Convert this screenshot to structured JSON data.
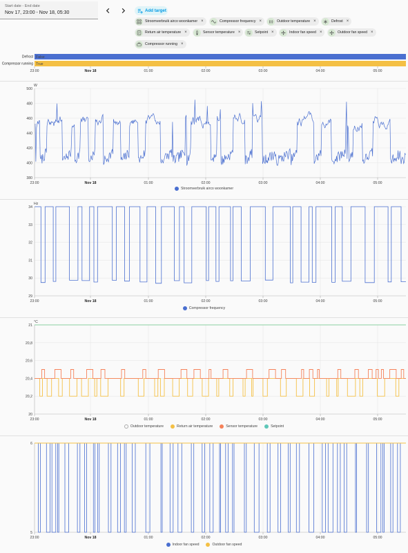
{
  "date_range": {
    "label": "Start date - End date",
    "value": "Nov 17, 23:00 - Nov 18, 05:30"
  },
  "nav": {
    "prev_icon": "chevron-left-icon",
    "next_icon": "chevron-right-icon"
  },
  "add_target": {
    "label": "Add target",
    "icon": "add-target-icon"
  },
  "targets": [
    {
      "label": "Stroomverbruik airco woonkamer",
      "icon": "energy-icon"
    },
    {
      "label": "Compressor frequency",
      "icon": "sine-wave-icon"
    },
    {
      "label": "Outdoor temperature",
      "icon": "heat-icon"
    },
    {
      "label": "Defrost",
      "icon": "snowflake-sun-icon"
    },
    {
      "label": "Return air temperature",
      "icon": "thermostat-icon"
    },
    {
      "label": "Sensor temperature",
      "icon": "thermometer-icon"
    },
    {
      "label": "Setpoint",
      "icon": "sliders-icon"
    },
    {
      "label": "Indoor fan speed",
      "icon": "fan-icon"
    },
    {
      "label": "Outdoor fan speed",
      "icon": "fan-icon"
    },
    {
      "label": "Compressor running",
      "icon": "compressor-icon"
    }
  ],
  "colors": {
    "blue": "#4a6fd0",
    "orange": "#f4c044",
    "red": "#f58159",
    "teal": "#5ec7b8",
    "green": "#8ad0a0",
    "grid": "#e6e6e6"
  },
  "x_ticks": [
    "23:00",
    "Nov 18",
    "01:00",
    "02:00",
    "03:00",
    "04:00",
    "05:00"
  ],
  "chart_data": [
    {
      "type": "timeline",
      "rows": [
        {
          "name": "Defrost",
          "state": "False"
        },
        {
          "name": "Compressor running",
          "state": "True"
        }
      ]
    },
    {
      "type": "line",
      "unit": "W",
      "ylim": [
        380,
        500
      ],
      "yticks": [
        "500",
        "480",
        "460",
        "440",
        "420",
        "400",
        "380"
      ],
      "series": [
        {
          "name": "Stroomverbruik airco woonkamer",
          "baseline": 455,
          "dips_to": 395,
          "spikes_to": 475
        }
      ]
    },
    {
      "type": "line",
      "unit": "Hz",
      "ylim": [
        29,
        34
      ],
      "yticks": [
        "34",
        "33",
        "32",
        "31",
        "30",
        "29"
      ],
      "series": [
        {
          "name": "Compressor frequency",
          "high": 34,
          "low": 29.7
        }
      ]
    },
    {
      "type": "line",
      "unit": "°C",
      "ylim": [
        20,
        21
      ],
      "yticks": [
        "21",
        "20,8",
        "20,6",
        "20,4",
        "20,2",
        "20"
      ],
      "series": [
        {
          "name": "Outdoor temperature",
          "value": null
        },
        {
          "name": "Return air temperature",
          "high": 20.4,
          "low": 20.2
        },
        {
          "name": "Sensor temperature",
          "high": 20.5,
          "low": 20.4
        },
        {
          "name": "Setpoint",
          "value": 21
        }
      ]
    },
    {
      "type": "line",
      "ylim": [
        5,
        6
      ],
      "yticks": [
        "6",
        "5"
      ],
      "series": [
        {
          "name": "Indoor fan speed",
          "high": 6,
          "low": 5
        },
        {
          "name": "Outdoor fan speed",
          "value": 6
        }
      ]
    }
  ]
}
